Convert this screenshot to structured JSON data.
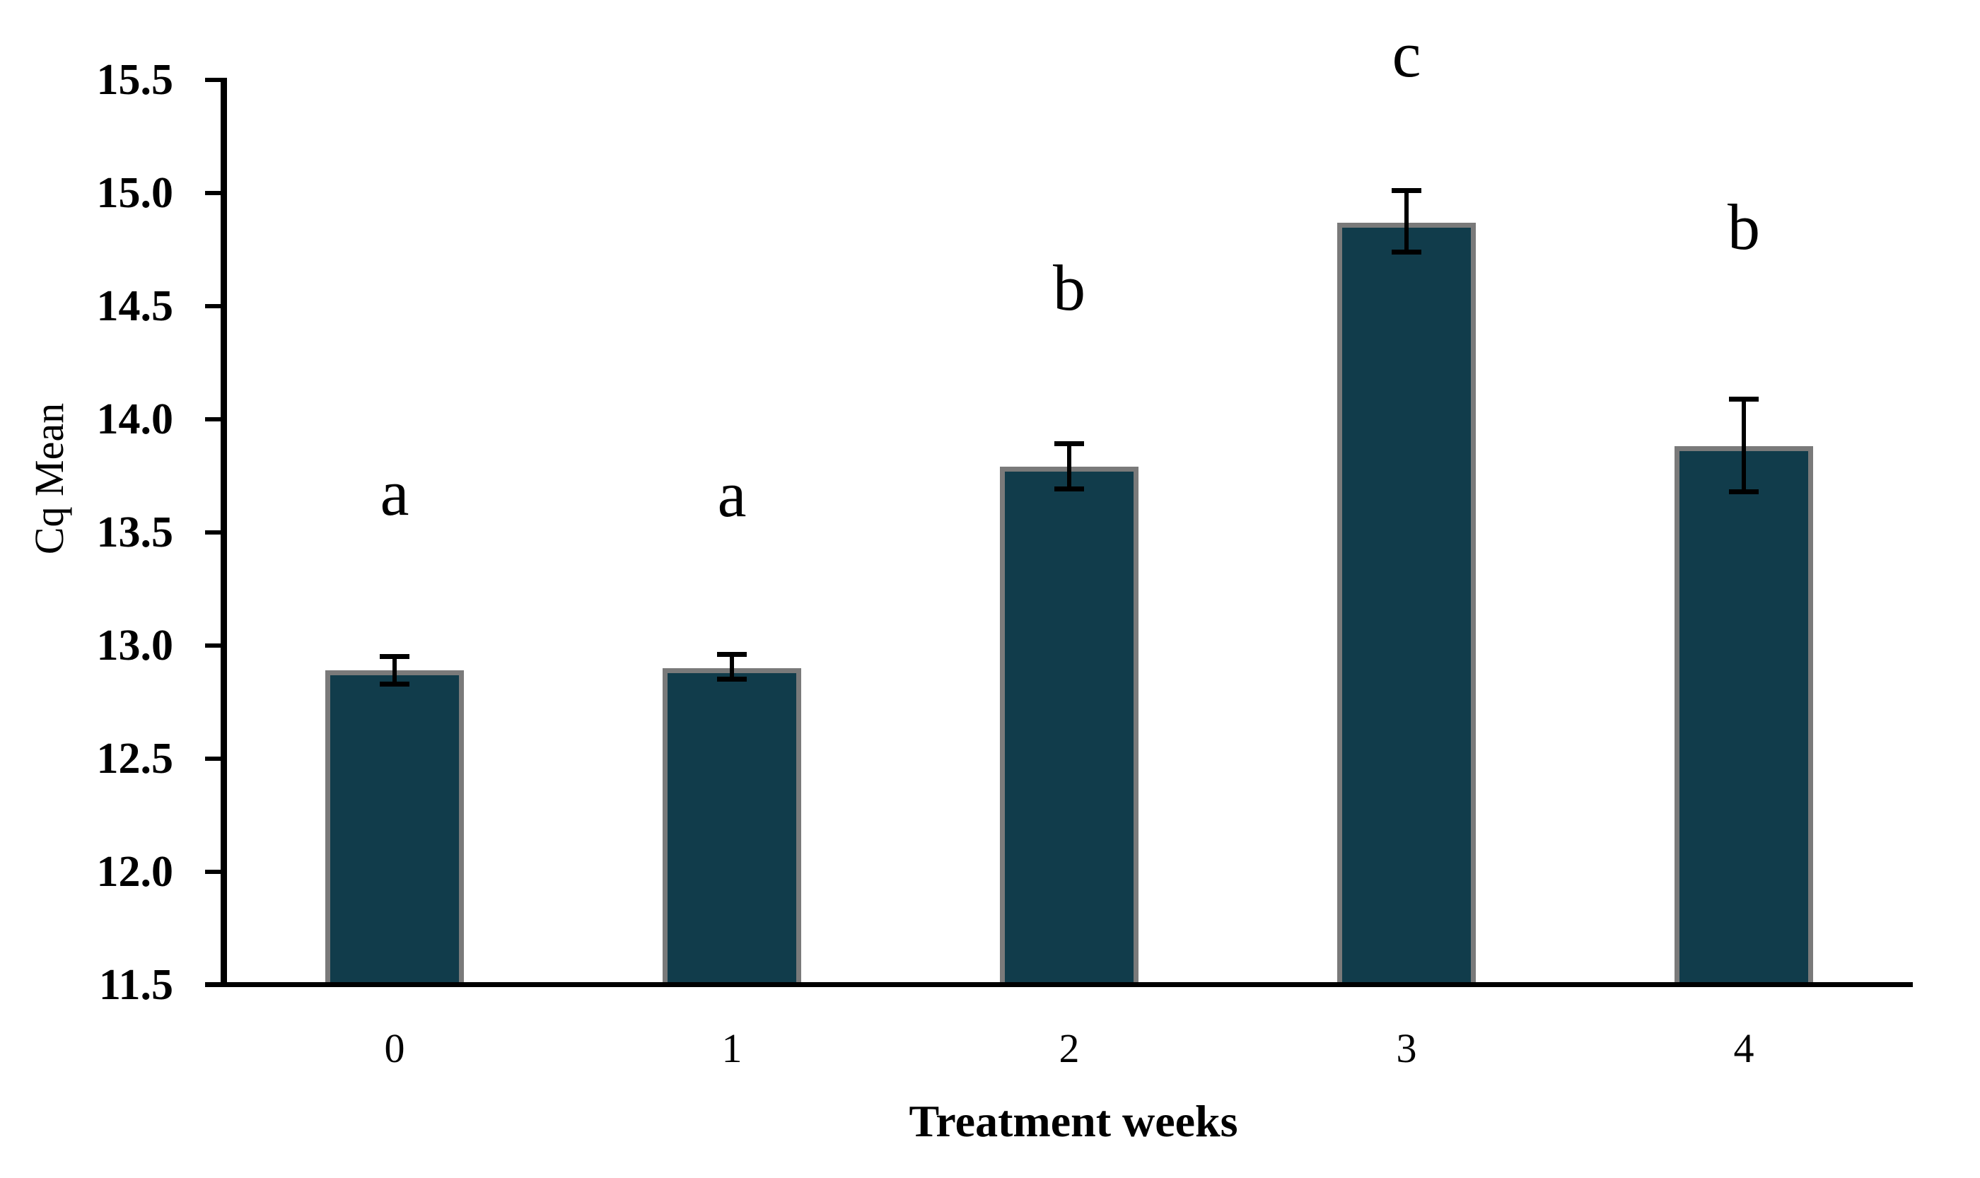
{
  "chart_data": {
    "type": "bar",
    "title": "",
    "xlabel": "Treatment weeks",
    "ylabel": "Cq Mean",
    "categories": [
      "0",
      "1",
      "2",
      "3",
      "4"
    ],
    "values": [
      12.89,
      12.9,
      13.79,
      14.87,
      13.88
    ],
    "error_low": [
      12.83,
      12.85,
      13.69,
      14.74,
      13.68
    ],
    "error_high": [
      12.95,
      12.96,
      13.89,
      15.01,
      14.09
    ],
    "significance_letters": [
      "a",
      "a",
      "b",
      "c",
      "b"
    ],
    "ylim": [
      11.5,
      15.5
    ],
    "ytick_step": 0.5,
    "ytick_labels": [
      "11.5",
      "12.0",
      "12.5",
      "13.0",
      "13.5",
      "14.0",
      "14.5",
      "15.0",
      "15.5"
    ],
    "grid": "off",
    "legend": "none",
    "bar_color": "#113c4b",
    "bar_border_color": "#7a7a7a",
    "error_bar_color": "#000000",
    "axis_color": "#000000",
    "background_color": "#ffffff"
  }
}
